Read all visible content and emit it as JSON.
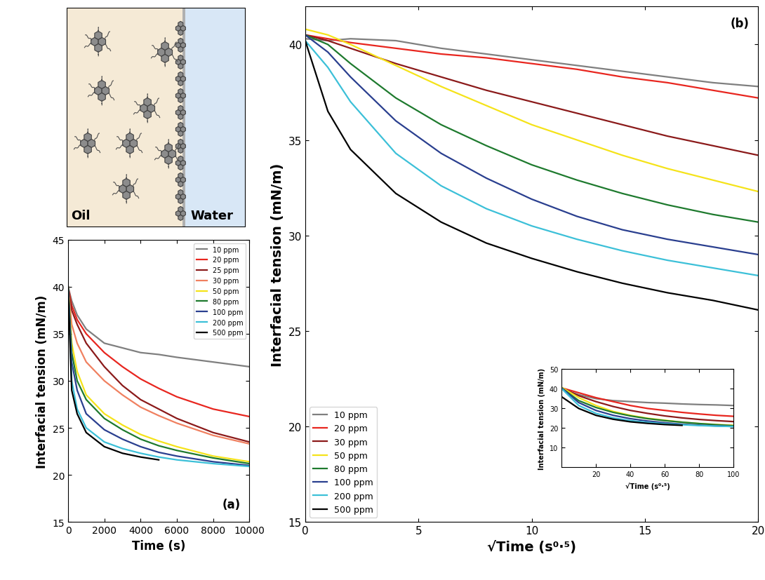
{
  "schematic": {
    "labels": [
      "Oil",
      "Water"
    ]
  },
  "chart_data": [
    {
      "type": "line",
      "annotation": "(a)",
      "x_label": "Time (s)",
      "y_label": "Interfacial tension (mN/m)",
      "x": [
        0,
        200,
        500,
        1000,
        2000,
        3000,
        4000,
        5000,
        6000,
        8000,
        10000
      ],
      "xlim": [
        0,
        10000
      ],
      "xticks": [
        0,
        2000,
        4000,
        6000,
        8000,
        10000
      ],
      "ylim": [
        15,
        45
      ],
      "yticks": [
        15,
        20,
        25,
        30,
        35,
        40,
        45
      ],
      "legend": "upper right",
      "series": [
        {
          "name": "10 ppm",
          "color": "#7f7f7f",
          "values": [
            40,
            38.5,
            37,
            35.5,
            34,
            33.5,
            33,
            32.8,
            32.5,
            32,
            31.5
          ]
        },
        {
          "name": "20 ppm",
          "color": "#e8261f",
          "values": [
            40,
            38,
            36.5,
            35,
            33,
            31.5,
            30.2,
            29.2,
            28.3,
            27,
            26.2
          ]
        },
        {
          "name": "25 ppm",
          "color": "#8b1a1a",
          "values": [
            40,
            37.5,
            36,
            34,
            31.5,
            29.5,
            28,
            27,
            26,
            24.5,
            23.5
          ]
        },
        {
          "name": "30 ppm",
          "color": "#f08060",
          "values": [
            40,
            36,
            34,
            32,
            30,
            28.5,
            27.2,
            26.3,
            25.5,
            24.2,
            23.3
          ]
        },
        {
          "name": "50 ppm",
          "color": "#f5e31a",
          "values": [
            40,
            34,
            31,
            28.5,
            26.5,
            25.3,
            24.3,
            23.6,
            23,
            22,
            21.4
          ]
        },
        {
          "name": "80 ppm",
          "color": "#1e7a2e",
          "values": [
            40,
            33,
            30,
            28,
            26,
            24.8,
            23.8,
            23.1,
            22.6,
            21.8,
            21.2
          ]
        },
        {
          "name": "100 ppm",
          "color": "#2a3f8f",
          "values": [
            40,
            32,
            29,
            26.5,
            24.8,
            23.8,
            23,
            22.4,
            22,
            21.4,
            21
          ]
        },
        {
          "name": "200 ppm",
          "color": "#3cc0d8",
          "values": [
            40,
            30,
            27,
            25,
            23.5,
            22.8,
            22.3,
            21.9,
            21.6,
            21.2,
            20.9
          ]
        },
        {
          "name": "500 ppm",
          "color": "#000000",
          "values": [
            40,
            29,
            26.5,
            24.5,
            23,
            22.3,
            21.9,
            21.6,
            null,
            null,
            null
          ]
        }
      ]
    },
    {
      "type": "line",
      "annotation": "(b)",
      "x_label": "√Time (s⁰·⁵)",
      "y_label": "Interfacial tension (mN/m)",
      "x": [
        0,
        1,
        2,
        4,
        6,
        8,
        10,
        12,
        14,
        16,
        18,
        20
      ],
      "xlim": [
        0,
        20
      ],
      "xticks": [
        0,
        5,
        10,
        15,
        20
      ],
      "ylim": [
        15,
        42
      ],
      "yticks": [
        15,
        20,
        25,
        30,
        35,
        40
      ],
      "legend": "lower left",
      "series": [
        {
          "name": "10 ppm",
          "color": "#7f7f7f",
          "values": [
            40.3,
            40.2,
            40.3,
            40.2,
            39.8,
            39.5,
            39.2,
            38.9,
            38.6,
            38.3,
            38.0,
            37.8
          ]
        },
        {
          "name": "20 ppm",
          "color": "#e8261f",
          "values": [
            40.5,
            40.3,
            40.1,
            39.8,
            39.5,
            39.3,
            39.0,
            38.7,
            38.3,
            38.0,
            37.6,
            37.2
          ]
        },
        {
          "name": "30 ppm",
          "color": "#8b1a1a",
          "values": [
            40.5,
            40.2,
            39.8,
            39.0,
            38.3,
            37.6,
            37.0,
            36.4,
            35.8,
            35.2,
            34.7,
            34.2
          ]
        },
        {
          "name": "50 ppm",
          "color": "#f5e31a",
          "values": [
            40.8,
            40.5,
            40.0,
            38.9,
            37.8,
            36.8,
            35.8,
            35.0,
            34.2,
            33.5,
            32.9,
            32.3
          ]
        },
        {
          "name": "80 ppm",
          "color": "#1e7a2e",
          "values": [
            40.5,
            40.0,
            39.0,
            37.2,
            35.8,
            34.7,
            33.7,
            32.9,
            32.2,
            31.6,
            31.1,
            30.7
          ]
        },
        {
          "name": "100 ppm",
          "color": "#2a3f8f",
          "values": [
            40.5,
            39.6,
            38.3,
            36.0,
            34.3,
            33.0,
            31.9,
            31.0,
            30.3,
            29.8,
            29.4,
            29.0
          ]
        },
        {
          "name": "200 ppm",
          "color": "#3cc0d8",
          "values": [
            40.2,
            38.8,
            37.0,
            34.3,
            32.6,
            31.4,
            30.5,
            29.8,
            29.2,
            28.7,
            28.3,
            27.9
          ]
        },
        {
          "name": "500 ppm",
          "color": "#000000",
          "values": [
            40.2,
            36.5,
            34.5,
            32.2,
            30.7,
            29.6,
            28.8,
            28.1,
            27.5,
            27.0,
            26.6,
            26.1
          ]
        }
      ]
    },
    {
      "type": "line",
      "x_label": "√Time (s⁰·⁵)",
      "y_label": "Interfacial tension (mN/m)",
      "x": [
        0,
        10,
        20,
        30,
        40,
        50,
        60,
        70,
        80,
        90,
        100
      ],
      "xlim": [
        0,
        100
      ],
      "xticks": [
        20,
        40,
        60,
        80,
        100
      ],
      "ylim": [
        0,
        50
      ],
      "yticks": [
        10,
        20,
        30,
        40,
        50
      ],
      "series": [
        {
          "color": "#7f7f7f",
          "values": [
            40,
            37,
            35,
            34,
            33.5,
            33,
            32.7,
            32.3,
            32,
            31.8,
            31.5
          ]
        },
        {
          "color": "#e8261f",
          "values": [
            40.5,
            38,
            35.5,
            33.5,
            31.5,
            30,
            29,
            28,
            27.2,
            26.5,
            26
          ]
        },
        {
          "color": "#8b1a1a",
          "values": [
            40.5,
            36.5,
            33.5,
            31,
            29,
            27.5,
            26.2,
            25.2,
            24.4,
            23.8,
            23.3
          ]
        },
        {
          "color": "#f5e31a",
          "values": [
            40.8,
            35.5,
            31.5,
            28.5,
            26.5,
            25,
            24,
            23,
            22.3,
            21.8,
            21.4
          ]
        },
        {
          "color": "#1e7a2e",
          "values": [
            40.5,
            34,
            30.5,
            28,
            26.2,
            24.8,
            23.8,
            23,
            22.3,
            21.7,
            21.2
          ]
        },
        {
          "color": "#2a3f8f",
          "values": [
            40.5,
            33,
            29,
            26.5,
            24.8,
            23.6,
            22.7,
            22,
            21.5,
            21.1,
            20.8
          ]
        },
        {
          "color": "#3cc0d8",
          "values": [
            40.2,
            31.5,
            27.5,
            25.2,
            23.8,
            22.9,
            22.2,
            21.7,
            21.3,
            21,
            20.8
          ]
        },
        {
          "color": "#000000",
          "values": [
            36,
            30,
            26.5,
            24.5,
            23.2,
            22.4,
            21.8,
            21.4,
            null,
            null,
            null
          ]
        }
      ]
    }
  ]
}
